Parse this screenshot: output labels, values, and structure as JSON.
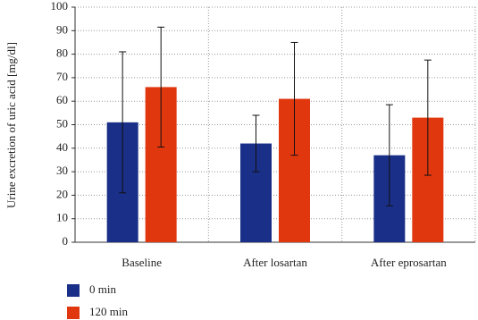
{
  "chart_data": {
    "type": "bar",
    "y_label": "Urine excretion of uric acid [mg/dl]",
    "categories": [
      "Baseline",
      "After losartan",
      "After eprosartan"
    ],
    "series": [
      {
        "name": "0 min",
        "color": "#1a2f87",
        "values": [
          51,
          42,
          37
        ],
        "errors": [
          30,
          12,
          21.5
        ]
      },
      {
        "name": "120 min",
        "color": "#e0370f",
        "values": [
          66,
          61,
          53
        ],
        "errors": [
          25.5,
          24,
          24.5
        ]
      }
    ],
    "ylim": [
      0,
      100
    ],
    "yticks": [
      0,
      10,
      20,
      30,
      40,
      50,
      60,
      70,
      80,
      90,
      100
    ],
    "grid": true
  }
}
